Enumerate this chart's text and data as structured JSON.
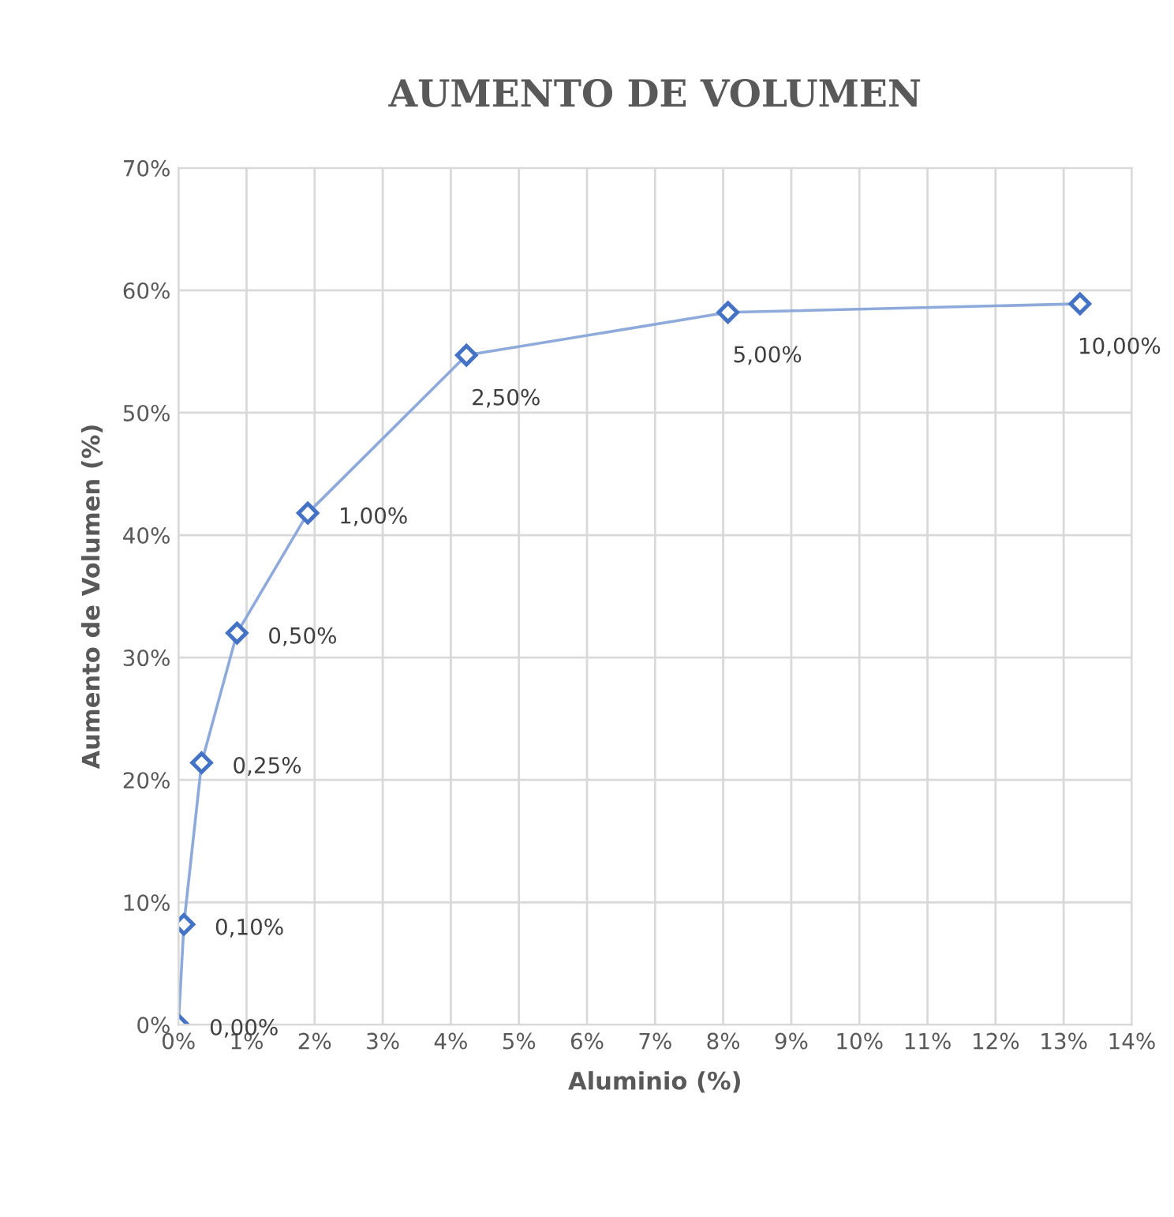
{
  "chart_data": {
    "type": "line",
    "title": "AUMENTO DE VOLUMEN",
    "xlabel": "Aluminio (%)",
    "ylabel": "Aumento de Volumen (%)",
    "x": [
      0,
      0.08,
      0.34,
      0.86,
      1.9,
      4.23,
      8.07,
      13.24
    ],
    "series": [
      {
        "color": "#4472c4",
        "values": [
          0,
          8.2,
          21.4,
          32.0,
          41.8,
          54.7,
          58.2,
          58.9
        ]
      }
    ],
    "marker": "diamond",
    "line_style": "solid",
    "grid": true,
    "xlim": [
      0,
      14
    ],
    "ylim": [
      0,
      70
    ],
    "xticks": [
      {
        "value": 0,
        "label": "0%"
      },
      {
        "value": 1,
        "label": "1%"
      },
      {
        "value": 2,
        "label": "2%"
      },
      {
        "value": 3,
        "label": "3%"
      },
      {
        "value": 4,
        "label": "4%"
      },
      {
        "value": 5,
        "label": "5%"
      },
      {
        "value": 6,
        "label": "6%"
      },
      {
        "value": 7,
        "label": "7%"
      },
      {
        "value": 8,
        "label": "8%"
      },
      {
        "value": 9,
        "label": "9%"
      },
      {
        "value": 10,
        "label": "10%"
      },
      {
        "value": 11,
        "label": "11%"
      },
      {
        "value": 12,
        "label": "12%"
      },
      {
        "value": 13,
        "label": "13%"
      },
      {
        "value": 14,
        "label": "14%"
      }
    ],
    "yticks": [
      {
        "value": 0,
        "label": "0%"
      },
      {
        "value": 10,
        "label": "10%"
      },
      {
        "value": 20,
        "label": "20%"
      },
      {
        "value": 30,
        "label": "30%"
      },
      {
        "value": 40,
        "label": "40%"
      },
      {
        "value": 50,
        "label": "50%"
      },
      {
        "value": 60,
        "label": "60%"
      },
      {
        "value": 70,
        "label": "70%"
      }
    ],
    "annotations": [
      {
        "text": "0,00%",
        "x": 0,
        "y": 0
      },
      {
        "text": "0,10%",
        "x": 0.08,
        "y": 8.2
      },
      {
        "text": "0,25%",
        "x": 0.34,
        "y": 21.4
      },
      {
        "text": "0,50%",
        "x": 0.86,
        "y": 32.0
      },
      {
        "text": "1,00%",
        "x": 1.9,
        "y": 41.8
      },
      {
        "text": "2,50%",
        "x": 4.23,
        "y": 54.7
      },
      {
        "text": "5,00%",
        "x": 8.07,
        "y": 58.2
      },
      {
        "text": "10,00%",
        "x": 13.24,
        "y": 58.9
      }
    ]
  }
}
